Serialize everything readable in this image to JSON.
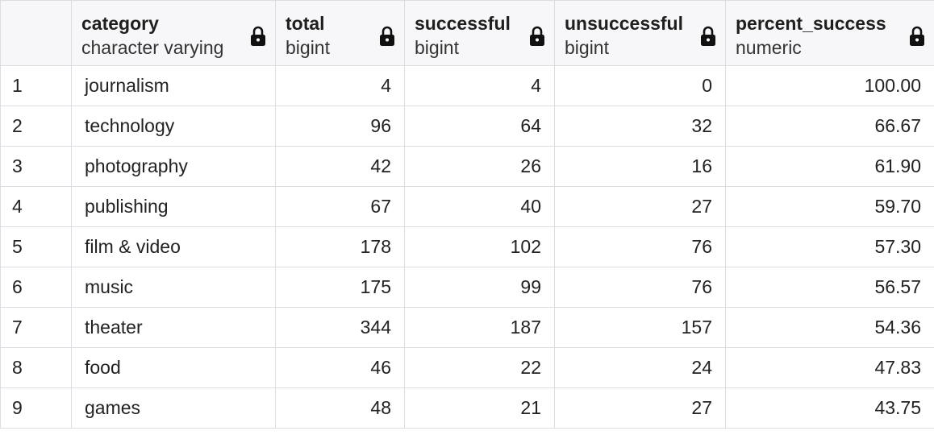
{
  "columns": [
    {
      "name": "category",
      "type": "character varying"
    },
    {
      "name": "total",
      "type": "bigint"
    },
    {
      "name": "successful",
      "type": "bigint"
    },
    {
      "name": "unsuccessful",
      "type": "bigint"
    },
    {
      "name": "percent_success",
      "type": "numeric"
    }
  ],
  "rows": [
    {
      "n": "1",
      "category": "journalism",
      "total": "4",
      "successful": "4",
      "unsuccessful": "0",
      "percent_success": "100.00"
    },
    {
      "n": "2",
      "category": "technology",
      "total": "96",
      "successful": "64",
      "unsuccessful": "32",
      "percent_success": "66.67"
    },
    {
      "n": "3",
      "category": "photography",
      "total": "42",
      "successful": "26",
      "unsuccessful": "16",
      "percent_success": "61.90"
    },
    {
      "n": "4",
      "category": "publishing",
      "total": "67",
      "successful": "40",
      "unsuccessful": "27",
      "percent_success": "59.70"
    },
    {
      "n": "5",
      "category": "film & video",
      "total": "178",
      "successful": "102",
      "unsuccessful": "76",
      "percent_success": "57.30"
    },
    {
      "n": "6",
      "category": "music",
      "total": "175",
      "successful": "99",
      "unsuccessful": "76",
      "percent_success": "56.57"
    },
    {
      "n": "7",
      "category": "theater",
      "total": "344",
      "successful": "187",
      "unsuccessful": "157",
      "percent_success": "54.36"
    },
    {
      "n": "8",
      "category": "food",
      "total": "46",
      "successful": "22",
      "unsuccessful": "24",
      "percent_success": "47.83"
    },
    {
      "n": "9",
      "category": "games",
      "total": "48",
      "successful": "21",
      "unsuccessful": "27",
      "percent_success": "43.75"
    }
  ],
  "icons": {
    "column_lock": "lock-icon"
  },
  "colors": {
    "grid_line": "#dadde1",
    "header_bg": "#f7f7f9",
    "text": "#222222"
  }
}
